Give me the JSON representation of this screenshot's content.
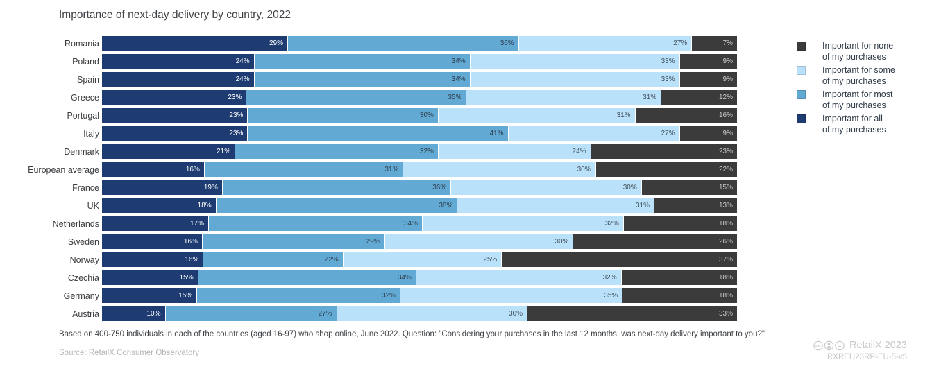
{
  "title": "Importance of next-day delivery by country, 2022",
  "chart_data": {
    "type": "bar",
    "stacked": true,
    "orientation": "horizontal",
    "value_suffix": "%",
    "axis_range": [
      0,
      100
    ],
    "grid": false,
    "legend_position": "right",
    "categories": [
      "Romania",
      "Poland",
      "Spain",
      "Greece",
      "Portugal",
      "Italy",
      "Denmark",
      "European average",
      "France",
      "UK",
      "Netherlands",
      "Sweden",
      "Norway",
      "Czechia",
      "Germany",
      "Austria"
    ],
    "series": [
      {
        "key": "all",
        "name": "Important for all of my purchases",
        "color": "#1e3c72",
        "label_color": "#ffffff",
        "values": [
          29,
          24,
          24,
          23,
          23,
          23,
          21,
          16,
          19,
          18,
          17,
          16,
          16,
          15,
          15,
          10
        ]
      },
      {
        "key": "most",
        "name": "Important for most of my purchases",
        "color": "#62a9d3",
        "label_color": "#2e3d4d",
        "values": [
          36,
          34,
          34,
          35,
          30,
          41,
          32,
          31,
          36,
          38,
          34,
          29,
          22,
          34,
          32,
          27
        ]
      },
      {
        "key": "some",
        "name": "Important for some of my purchases",
        "color": "#b9e2fa",
        "label_color": "#43505c",
        "values": [
          27,
          33,
          33,
          31,
          31,
          27,
          24,
          30,
          30,
          31,
          32,
          30,
          25,
          32,
          35,
          30
        ]
      },
      {
        "key": "none",
        "name": "Important for none of my purchases",
        "color": "#3b3b3b",
        "label_color": "#cccccc",
        "values": [
          7,
          9,
          9,
          12,
          16,
          9,
          23,
          22,
          15,
          13,
          18,
          26,
          37,
          18,
          18,
          33
        ]
      }
    ]
  },
  "legend": {
    "items": [
      {
        "key": "none",
        "color": "#3b3b3b",
        "line1": "Important for none",
        "line2": "of my purchases"
      },
      {
        "key": "some",
        "color": "#b9e2fa",
        "line1": "Important for some",
        "line2": "of my purchases"
      },
      {
        "key": "most",
        "color": "#62a9d3",
        "line1": "Important for most",
        "line2": "of my purchases"
      },
      {
        "key": "all",
        "color": "#1e3c72",
        "line1": "Important for all",
        "line2": "of my purchases"
      }
    ]
  },
  "footnote": "Based on 400-750 individuals in each of the countries (aged 16-97) who shop online, June 2022. Question: \"Considering your purchases in the last 12 months, was next-day delivery important to you?\"",
  "source": "Source: RetailX Consumer Observatory",
  "branding": {
    "license_icons": "cc-by-nd-icons",
    "name": "RetailX 2023",
    "code": "RXREU23RP-EU-5-v5"
  }
}
